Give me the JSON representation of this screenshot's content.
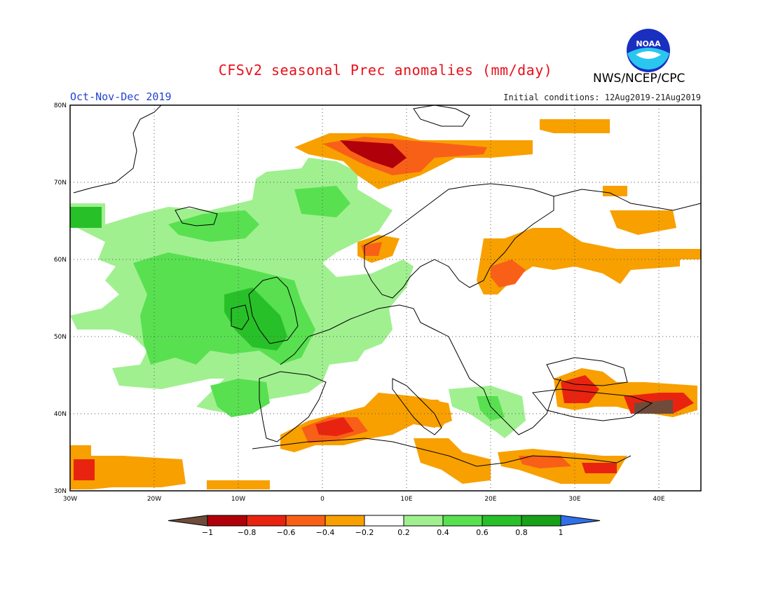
{
  "header": {
    "title": "CFSv2 seasonal Prec anomalies (mm/day)",
    "period": "Oct-Nov-Dec 2019",
    "initial_conditions": "Initial conditions: 12Aug2019-21Aug2019",
    "agency": "NWS/NCEP/CPC",
    "logo_text": "NOAA"
  },
  "axes": {
    "lat_labels": [
      "80N",
      "70N",
      "60N",
      "50N",
      "40N",
      "30N"
    ],
    "lon_labels": [
      "30W",
      "20W",
      "10W",
      "0",
      "10E",
      "20E",
      "30E",
      "40E"
    ],
    "lon_range": [
      -30,
      45
    ],
    "lat_range": [
      30,
      80
    ]
  },
  "colorbar": {
    "tick_labels": [
      "-1",
      "-0.8",
      "-0.6",
      "-0.4",
      "-0.2",
      "0.2",
      "0.4",
      "0.6",
      "0.8",
      "1"
    ],
    "colors": [
      "#6e4b3a",
      "#b0000a",
      "#e82410",
      "#f86018",
      "#f8a000",
      "#ffffff",
      "#a0f090",
      "#58e050",
      "#28c028",
      "#18a018",
      "#3070e8"
    ]
  },
  "colors": {
    "coast": "#000000",
    "grid": "#555555"
  }
}
